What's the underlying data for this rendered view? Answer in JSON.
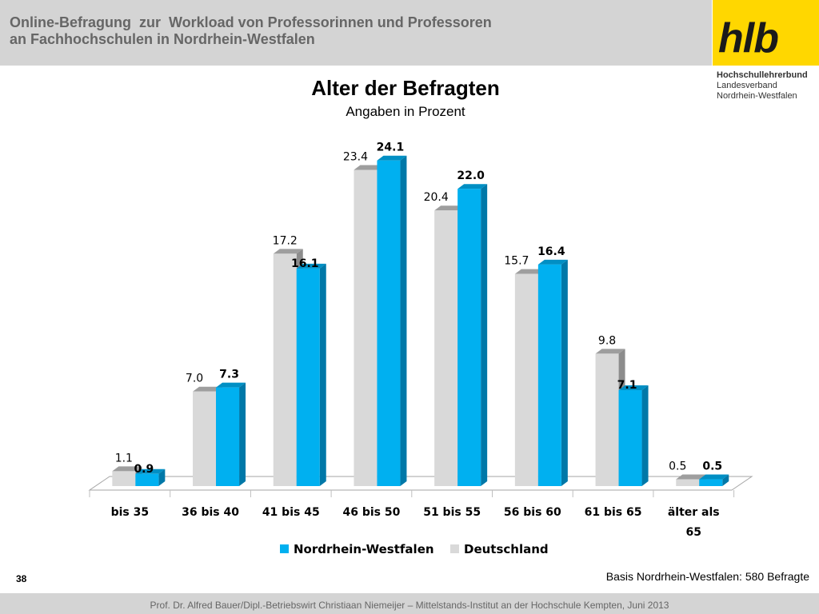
{
  "header": {
    "title_line1": "Online-Befragung  zur  Workload von Professorinnen und Professoren",
    "title_line2": "an Fachhochschulen in Nordrhein-Westfalen"
  },
  "logo": {
    "text": "hlb",
    "org_line1": "Hochschullehrerbund",
    "org_line2": "Landesverband",
    "org_line3": "Nordrhein-Westfalen"
  },
  "colors": {
    "header_band": "#d4d4d4",
    "logo_yellow": "#ffd700",
    "nrw_blue": "#00b0f0",
    "de_gray": "#d9d9d9"
  },
  "chart_data": {
    "type": "bar",
    "title": "Alter der Befragten",
    "subtitle": "Angaben in Prozent",
    "categories": [
      "bis 35",
      "36 bis 40",
      "41 bis 45",
      "46 bis 50",
      "51 bis 55",
      "56 bis 60",
      "61 bis 65",
      "älter als 65"
    ],
    "series": [
      {
        "name": "Deutschland",
        "values": [
          1.1,
          7.0,
          17.2,
          23.4,
          20.4,
          15.7,
          9.8,
          0.5
        ]
      },
      {
        "name": "Nordrhein-Westfalen",
        "values": [
          0.9,
          7.3,
          16.1,
          24.1,
          22.0,
          16.4,
          7.1,
          0.5
        ]
      }
    ],
    "legend_order": [
      "Nordrhein-Westfalen",
      "Deutschland"
    ],
    "legend_position": "bottom",
    "ylim": [
      0,
      25
    ],
    "grid": false,
    "style": "3d-columns"
  },
  "basis": "Basis Nordrhein-Westfalen: 580 Befragte",
  "page_number": "38",
  "footer": "Prof. Dr. Alfred Bauer/Dipl.-Betriebswirt Christiaan Niemeijer – Mittelstands-Institut an der Hochschule Kempten, Juni 2013"
}
